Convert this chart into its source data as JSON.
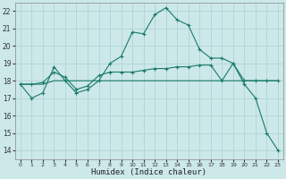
{
  "xlabel": "Humidex (Indice chaleur)",
  "bg_color": "#cce8e8",
  "grid_color": "#aad0d0",
  "line_color": "#1a7a6a",
  "xlim": [
    -0.5,
    23.5
  ],
  "ylim": [
    13.5,
    22.5
  ],
  "xticks": [
    0,
    1,
    2,
    3,
    4,
    5,
    6,
    7,
    8,
    9,
    10,
    11,
    12,
    13,
    14,
    15,
    16,
    17,
    18,
    19,
    20,
    21,
    22,
    23
  ],
  "yticks": [
    14,
    15,
    16,
    17,
    18,
    19,
    20,
    21,
    22
  ],
  "series1_x": [
    0,
    1,
    2,
    3,
    4,
    5,
    6,
    7,
    8,
    9,
    10,
    11,
    12,
    13,
    14,
    15,
    16,
    17,
    18,
    19,
    20,
    21,
    22,
    23
  ],
  "series1_y": [
    17.8,
    17.0,
    17.3,
    18.8,
    18.0,
    17.3,
    17.5,
    18.0,
    19.0,
    19.4,
    20.8,
    20.7,
    21.8,
    22.2,
    21.5,
    21.2,
    19.8,
    19.3,
    19.3,
    19.0,
    17.8,
    17.0,
    15.0,
    14.0
  ],
  "series2_x": [
    0,
    1,
    2,
    3,
    4,
    5,
    6,
    7,
    8,
    9,
    10,
    11,
    12,
    13,
    14,
    15,
    16,
    17,
    18,
    19,
    20,
    21,
    22,
    23
  ],
  "series2_y": [
    17.8,
    17.8,
    17.8,
    18.0,
    18.0,
    18.0,
    18.0,
    18.0,
    18.0,
    18.0,
    18.0,
    18.0,
    18.0,
    18.0,
    18.0,
    18.0,
    18.0,
    18.0,
    18.0,
    18.0,
    18.0,
    18.0,
    18.0,
    18.0
  ],
  "series3_x": [
    0,
    1,
    2,
    3,
    4,
    5,
    6,
    7,
    8,
    9,
    10,
    11,
    12,
    13,
    14,
    15,
    16,
    17,
    18,
    19,
    20,
    21,
    22,
    23
  ],
  "series3_y": [
    17.8,
    17.8,
    17.9,
    18.5,
    18.2,
    17.5,
    17.7,
    18.3,
    18.5,
    18.5,
    18.5,
    18.6,
    18.7,
    18.7,
    18.8,
    18.8,
    18.9,
    18.9,
    18.0,
    19.0,
    18.0,
    18.0,
    18.0,
    18.0
  ]
}
